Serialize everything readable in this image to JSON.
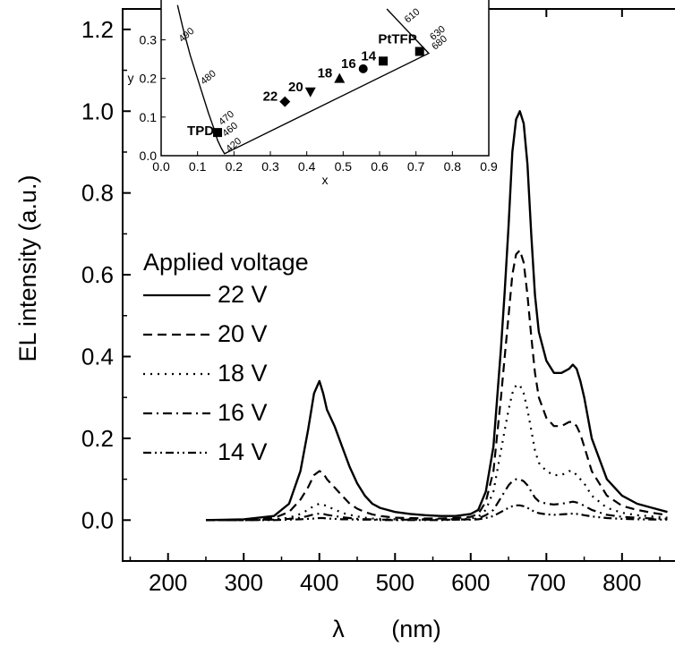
{
  "chart_data": [
    {
      "type": "line",
      "xlabel_symbol": "λ",
      "xlabel_unit": "(nm)",
      "ylabel": "EL intensity  (a.u.)",
      "xlim": [
        140,
        870
      ],
      "ylim": [
        -0.1,
        1.25
      ],
      "xticks": [
        200,
        300,
        400,
        500,
        600,
        700,
        800
      ],
      "yticks": [
        0.0,
        0.2,
        0.4,
        0.6,
        0.8,
        1.0,
        1.2
      ],
      "xtick_labels": [
        "200",
        "300",
        "400",
        "500",
        "600",
        "700",
        "800"
      ],
      "ytick_labels": [
        "0.0",
        "0.2",
        "0.4",
        "0.6",
        "0.8",
        "1.0",
        "1.2"
      ],
      "legend_title": "Applied voltage",
      "legend_position": "left-middle",
      "x": [
        250,
        300,
        340,
        360,
        375,
        385,
        393,
        400,
        405,
        410,
        420,
        430,
        440,
        450,
        460,
        470,
        480,
        490,
        500,
        520,
        540,
        560,
        580,
        600,
        610,
        620,
        630,
        640,
        645,
        650,
        655,
        660,
        665,
        670,
        675,
        680,
        685,
        690,
        700,
        710,
        720,
        730,
        735,
        740,
        745,
        750,
        760,
        780,
        800,
        820,
        840,
        860
      ],
      "series": [
        {
          "name": "22 V",
          "dash": "solid",
          "values": [
            0,
            0.002,
            0.01,
            0.04,
            0.12,
            0.22,
            0.31,
            0.34,
            0.31,
            0.27,
            0.23,
            0.18,
            0.13,
            0.09,
            0.06,
            0.04,
            0.03,
            0.025,
            0.02,
            0.015,
            0.012,
            0.01,
            0.01,
            0.015,
            0.025,
            0.07,
            0.18,
            0.42,
            0.56,
            0.72,
            0.9,
            0.98,
            1.0,
            0.97,
            0.87,
            0.7,
            0.55,
            0.46,
            0.39,
            0.36,
            0.36,
            0.37,
            0.38,
            0.37,
            0.34,
            0.3,
            0.2,
            0.1,
            0.06,
            0.04,
            0.03,
            0.02
          ]
        },
        {
          "name": "20 V",
          "dash": "dashed",
          "values": [
            0,
            0,
            0.005,
            0.02,
            0.05,
            0.08,
            0.11,
            0.12,
            0.115,
            0.1,
            0.08,
            0.06,
            0.04,
            0.028,
            0.02,
            0.014,
            0.01,
            0.008,
            0.006,
            0.005,
            0.004,
            0.004,
            0.005,
            0.008,
            0.015,
            0.045,
            0.12,
            0.3,
            0.4,
            0.5,
            0.6,
            0.65,
            0.66,
            0.63,
            0.55,
            0.45,
            0.36,
            0.3,
            0.25,
            0.23,
            0.23,
            0.24,
            0.24,
            0.23,
            0.21,
            0.18,
            0.12,
            0.06,
            0.035,
            0.025,
            0.018,
            0.012
          ]
        },
        {
          "name": "18 V",
          "dash": "dotted",
          "values": [
            0,
            0,
            0.002,
            0.006,
            0.015,
            0.025,
            0.035,
            0.04,
            0.038,
            0.034,
            0.026,
            0.018,
            0.013,
            0.009,
            0.006,
            0.004,
            0.003,
            0.002,
            0.002,
            0.002,
            0.002,
            0.002,
            0.002,
            0.004,
            0.008,
            0.025,
            0.07,
            0.17,
            0.22,
            0.27,
            0.31,
            0.33,
            0.33,
            0.31,
            0.27,
            0.22,
            0.17,
            0.14,
            0.12,
            0.11,
            0.11,
            0.12,
            0.12,
            0.11,
            0.1,
            0.09,
            0.06,
            0.03,
            0.018,
            0.012,
            0.009,
            0.006
          ]
        },
        {
          "name": "16 V",
          "dash": "dashdot",
          "values": [
            0,
            0,
            0.001,
            0.003,
            0.006,
            0.01,
            0.014,
            0.016,
            0.015,
            0.013,
            0.01,
            0.007,
            0.005,
            0.003,
            0.002,
            0.002,
            0.001,
            0.001,
            0.001,
            0.001,
            0.001,
            0.001,
            0.001,
            0.002,
            0.004,
            0.012,
            0.025,
            0.055,
            0.07,
            0.085,
            0.095,
            0.1,
            0.1,
            0.095,
            0.085,
            0.07,
            0.055,
            0.046,
            0.04,
            0.038,
            0.04,
            0.043,
            0.045,
            0.043,
            0.04,
            0.035,
            0.025,
            0.013,
            0.008,
            0.006,
            0.004,
            0.003
          ]
        },
        {
          "name": "14 V",
          "dash": "dashdotdot",
          "values": [
            0,
            0,
            0,
            0.001,
            0.002,
            0.003,
            0.004,
            0.005,
            0.005,
            0.004,
            0.003,
            0.002,
            0.002,
            0.001,
            0.001,
            0.001,
            0,
            0,
            0,
            0,
            0,
            0,
            0.001,
            0.001,
            0.002,
            0.005,
            0.01,
            0.02,
            0.025,
            0.03,
            0.034,
            0.036,
            0.036,
            0.034,
            0.03,
            0.025,
            0.02,
            0.017,
            0.014,
            0.013,
            0.014,
            0.015,
            0.016,
            0.015,
            0.014,
            0.012,
            0.009,
            0.005,
            0.003,
            0.002,
            0.0015,
            0.001
          ]
        }
      ]
    },
    {
      "type": "scatter",
      "xlabel": "x",
      "ylabel": "y",
      "xlim": [
        0.0,
        0.9
      ],
      "ylim": [
        0.0,
        0.38
      ],
      "xticks": [
        0.0,
        0.1,
        0.2,
        0.3,
        0.4,
        0.5,
        0.6,
        0.7,
        0.8,
        0.9
      ],
      "yticks": [
        0.0,
        0.1,
        0.2,
        0.3
      ],
      "xtick_labels": [
        "0.0",
        "0.1",
        "0.2",
        "0.3",
        "0.4",
        "0.5",
        "0.6",
        "0.7",
        "0.8",
        "0.9"
      ],
      "ytick_labels": [
        "0.0",
        "0.1",
        "0.2",
        "0.3"
      ],
      "locus_x": [
        0.045,
        0.06,
        0.08,
        0.11,
        0.13,
        0.145,
        0.155,
        0.165,
        0.174,
        0.735,
        0.7,
        0.66,
        0.62
      ],
      "locus_y": [
        0.39,
        0.33,
        0.26,
        0.17,
        0.11,
        0.07,
        0.04,
        0.02,
        0.005,
        0.265,
        0.3,
        0.34,
        0.38
      ],
      "wavelength_labels": [
        {
          "text": "490",
          "x": 0.05,
          "y": 0.3
        },
        {
          "text": "480",
          "x": 0.11,
          "y": 0.19
        },
        {
          "text": "470",
          "x": 0.16,
          "y": 0.085
        },
        {
          "text": "460",
          "x": 0.17,
          "y": 0.055
        },
        {
          "text": "420",
          "x": 0.18,
          "y": 0.015
        },
        {
          "text": "610",
          "x": 0.67,
          "y": 0.35
        },
        {
          "text": "630",
          "x": 0.74,
          "y": 0.305
        },
        {
          "text": "680",
          "x": 0.745,
          "y": 0.28
        }
      ],
      "points": [
        {
          "label": "TPD",
          "x": 0.155,
          "y": 0.06,
          "marker": "square"
        },
        {
          "label": "22",
          "x": 0.34,
          "y": 0.14,
          "marker": "diamond"
        },
        {
          "label": "20",
          "x": 0.41,
          "y": 0.165,
          "marker": "triangle-down"
        },
        {
          "label": "18",
          "x": 0.49,
          "y": 0.2,
          "marker": "triangle-up"
        },
        {
          "label": "16",
          "x": 0.555,
          "y": 0.225,
          "marker": "circle"
        },
        {
          "label": "14",
          "x": 0.61,
          "y": 0.245,
          "marker": "square"
        },
        {
          "label": "PtTFP",
          "x": 0.71,
          "y": 0.27,
          "marker": "square"
        }
      ]
    }
  ]
}
